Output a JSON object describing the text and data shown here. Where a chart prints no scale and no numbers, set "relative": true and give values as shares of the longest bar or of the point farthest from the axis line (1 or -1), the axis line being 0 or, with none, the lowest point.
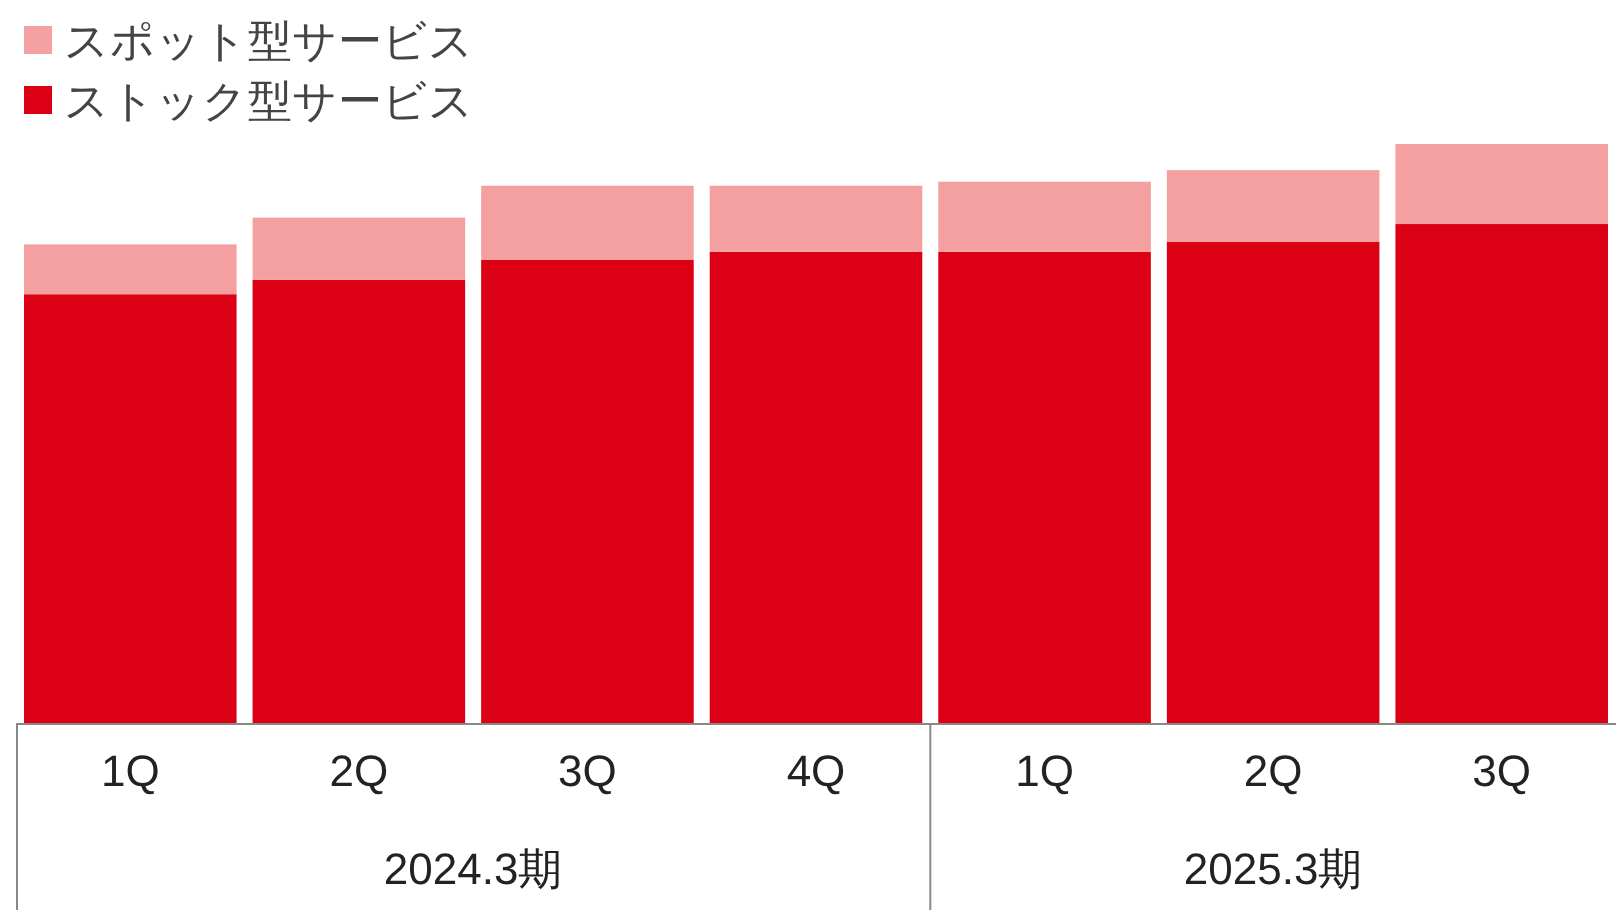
{
  "chart_data": {
    "type": "bar",
    "stacked": true,
    "relative": true,
    "legend": "top left",
    "categories": [
      "1Q",
      "2Q",
      "3Q",
      "4Q",
      "1Q",
      "2Q",
      "3Q"
    ],
    "series": [
      {
        "name": "ストック型サービス",
        "color": "#dc0014",
        "values": [
          0.741,
          0.766,
          0.8,
          0.814,
          0.814,
          0.831,
          0.862
        ]
      },
      {
        "name": "スポット型サービス",
        "color": "#f4a0a0",
        "values": [
          0.086,
          0.107,
          0.128,
          0.114,
          0.121,
          0.124,
          0.138
        ]
      }
    ],
    "annotations": [
      "2024.3期",
      "2025.3期"
    ]
  }
}
